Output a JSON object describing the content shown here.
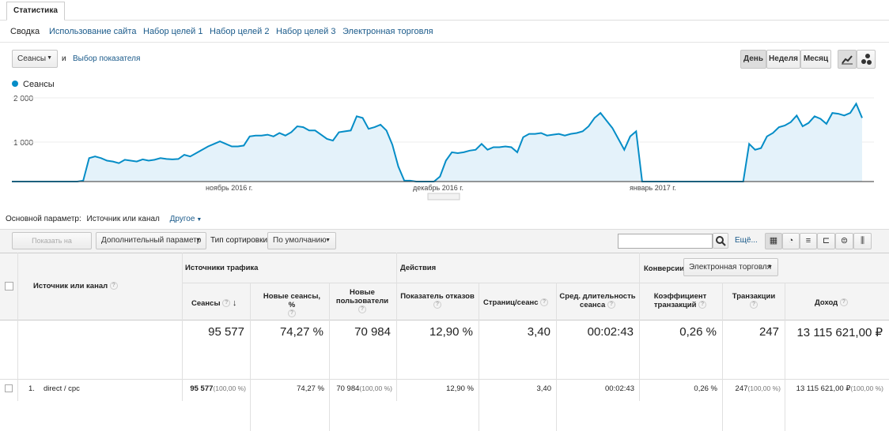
{
  "tabs": {
    "main": "Статистика"
  },
  "subnav": [
    {
      "label": "Сводка",
      "active": true
    },
    {
      "label": "Использование сайта"
    },
    {
      "label": "Набор целей 1"
    },
    {
      "label": "Набор целей 2"
    },
    {
      "label": "Набор целей 3"
    },
    {
      "label": "Электронная торговля"
    }
  ],
  "metric": {
    "selected": "Сеансы",
    "and": "и",
    "choose": "Выбор показателя"
  },
  "period": {
    "day": "День",
    "week": "Неделя",
    "month": "Месяц",
    "active": "day"
  },
  "chart_data": {
    "type": "area",
    "series": [
      {
        "name": "Сеансы",
        "color": "#058dc7"
      }
    ],
    "y_ticks": [
      "2 000",
      "1 000"
    ],
    "ylim": [
      0,
      2000
    ],
    "x_ticks": [
      "ноябрь 2016 г.",
      "декабрь 2016 г.",
      "январь 2017 г."
    ],
    "values": [
      0,
      0,
      0,
      0,
      0,
      0,
      0,
      0,
      0,
      0,
      0,
      0,
      20,
      560,
      600,
      560,
      500,
      480,
      440,
      520,
      500,
      480,
      530,
      500,
      520,
      560,
      540,
      530,
      540,
      640,
      600,
      680,
      760,
      840,
      900,
      960,
      900,
      840,
      840,
      860,
      1080,
      1100,
      1100,
      1120,
      1080,
      1160,
      1100,
      1180,
      1320,
      1300,
      1220,
      1220,
      1120,
      1020,
      980,
      1180,
      1200,
      1220,
      1560,
      1520,
      1260,
      1300,
      1360,
      1220,
      880,
      360,
      20,
      20,
      0,
      0,
      0,
      0,
      120,
      500,
      700,
      680,
      700,
      740,
      760,
      900,
      760,
      820,
      820,
      840,
      820,
      700,
      1060,
      1140,
      1140,
      1160,
      1100,
      1120,
      1140,
      1100,
      1140,
      1160,
      1200,
      1320,
      1520,
      1640,
      1460,
      1280,
      1020,
      760,
      1080,
      1200,
      0,
      0,
      0,
      0,
      0,
      0,
      0,
      0,
      0,
      0,
      0,
      0,
      0,
      0,
      0,
      0,
      0,
      0,
      900,
      760,
      800,
      1080,
      1160,
      1300,
      1340,
      1420,
      1580,
      1320,
      1400,
      1560,
      1500,
      1380,
      1640,
      1620,
      1580,
      1640,
      1860,
      1520
    ]
  },
  "primary": {
    "label": "Основной параметр:",
    "value": "Источник или канал",
    "other": "Другое"
  },
  "toolbar": {
    "plot": "Показать на диаграмме",
    "secondary": "Дополнительный параметр",
    "sort_label": "Тип сортировки:",
    "sort_value": "По умолчанию",
    "more": "Ещё..."
  },
  "table": {
    "dim_header": "Источник или канал",
    "groups": {
      "traffic": "Источники трафика",
      "actions": "Действия",
      "conv": "Конверсии",
      "conv_select": "Электронная торговля"
    },
    "cols": [
      "Сеансы",
      "Новые сеансы, %",
      "Новые пользователи",
      "Показатель отказов",
      "Страниц/сеанс",
      "Сред. длительность сеанса",
      "Коэффициент транзакций",
      "Транзакции",
      "Доход"
    ],
    "totals": [
      "95 577",
      "74,27 %",
      "70 984",
      "12,90 %",
      "3,40",
      "00:02:43",
      "0,26 %",
      "247",
      "13 115 621,00 ₽"
    ],
    "row": {
      "index": "1.",
      "name": "direct / cpc",
      "sessions": "95 577",
      "sessions_pct": "(100,00 %)",
      "new_pct": "74,27 %",
      "new_users": "70 984",
      "new_users_pct": "(100,00 %)",
      "bounce": "12,90 %",
      "pages": "3,40",
      "duration": "00:02:43",
      "conv": "0,26 %",
      "trans": "247",
      "trans_pct": "(100,00 %)",
      "revenue": "13 115 621,00 ₽",
      "revenue_pct": "(100,00 %)"
    }
  }
}
